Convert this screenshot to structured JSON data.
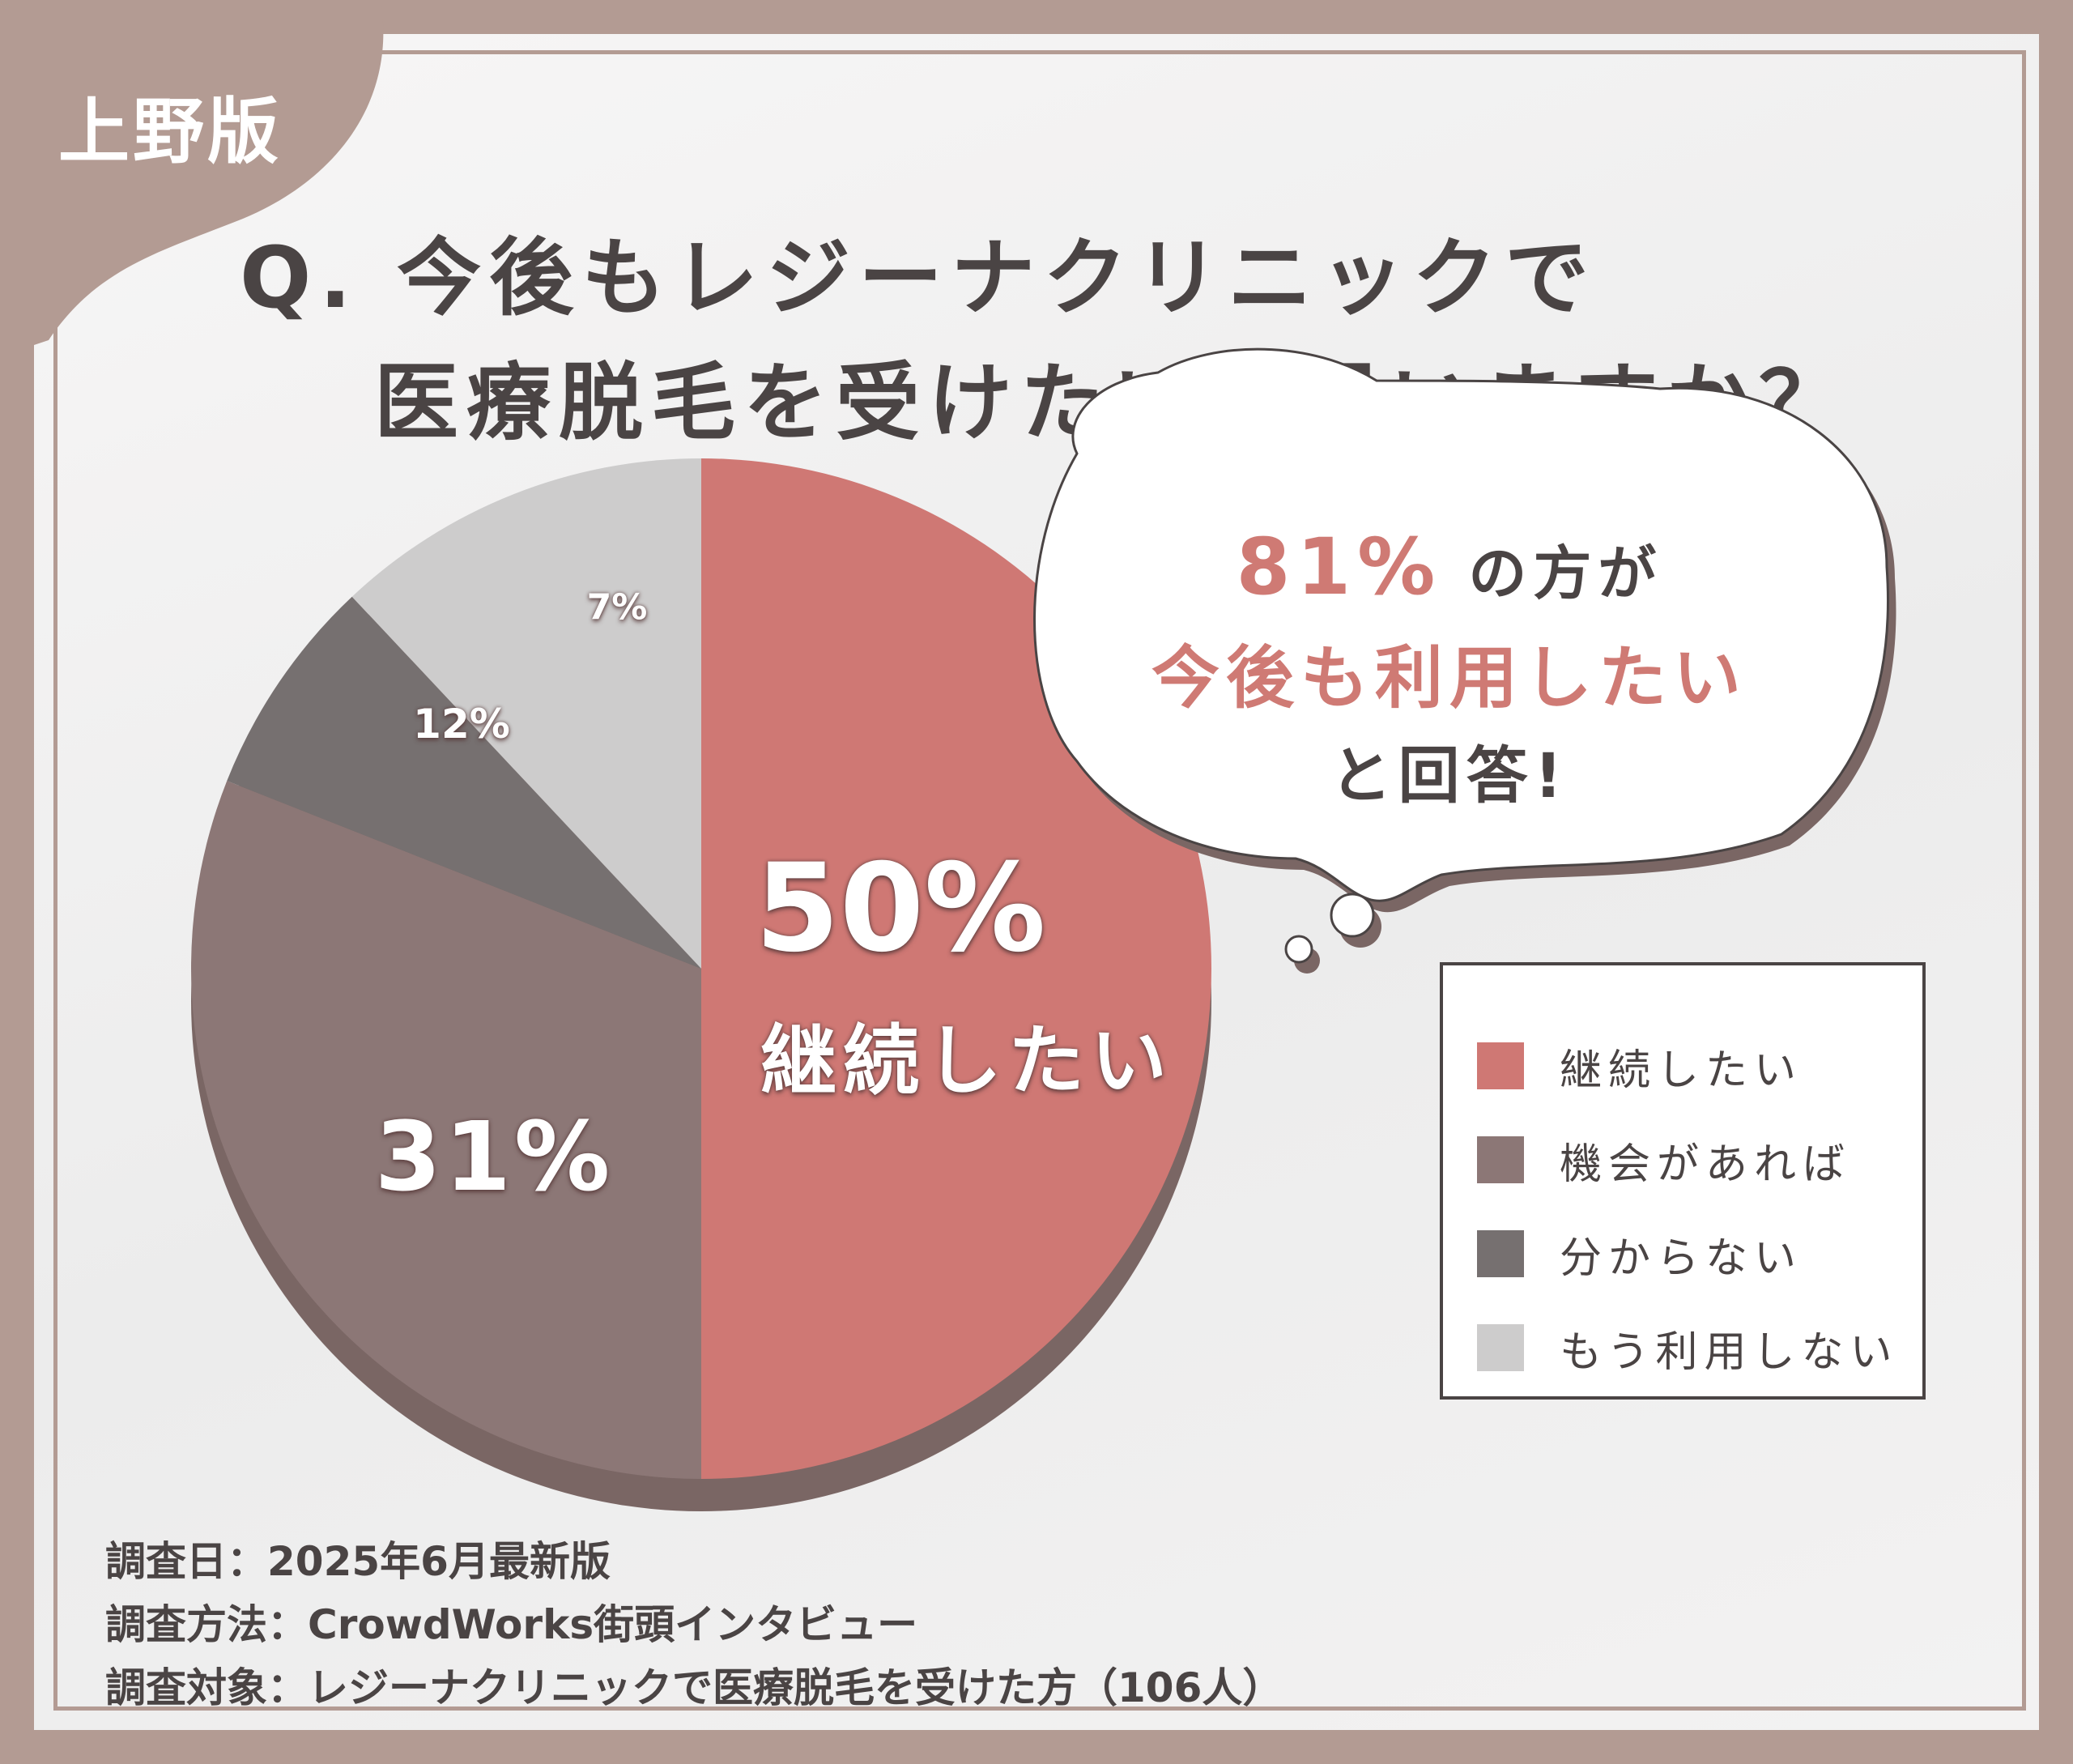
{
  "badge": "上野版",
  "title": {
    "line1": "Q. 今後もレジーナクリニックで",
    "line2": "医療脱毛を受けたいと思いますか？"
  },
  "callout": {
    "percent": "81%",
    "line1_suffix": " の方が",
    "line2": "今後も利用したい",
    "line3": "と回答!"
  },
  "chart_data": {
    "type": "pie",
    "categories": [
      "継続したい",
      "機会があれば",
      "分からない",
      "もう利用しない"
    ],
    "values": [
      50,
      31,
      7,
      12
    ],
    "unit": "%",
    "colors": [
      "#cf7874",
      "#8c7776",
      "#767070",
      "#cdcccc"
    ],
    "slice_labels": [
      "50%",
      "31%",
      "7%",
      "12%"
    ],
    "slice_name_label": "継続したい",
    "legend_position": "right"
  },
  "legend": [
    {
      "label": "継続したい",
      "color": "#cf7874"
    },
    {
      "label": "機会があれば",
      "color": "#8c7776"
    },
    {
      "label": "分からない",
      "color": "#767070"
    },
    {
      "label": "もう利用しない",
      "color": "#cdcccc"
    }
  ],
  "footnotes": {
    "date": "調査日：2025年6月最新版",
    "method": "調査方法：CrowdWorks街頭インタビュー",
    "target": "調査対象：レジーナクリニックで医療脱毛を受けた方（106人）"
  },
  "colors": {
    "frame": "#b39b93",
    "text": "#4a4444",
    "accent": "#cf7a74"
  }
}
